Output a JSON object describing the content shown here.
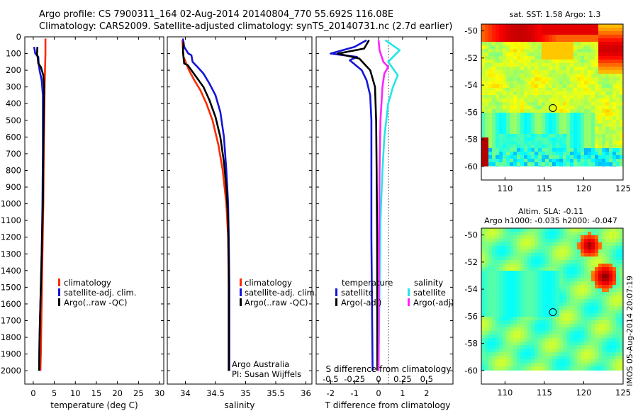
{
  "header": {
    "title1": "Argo profile: CS 7900311_164 02-Aug-2014 20140804_770 55.692S 116.08E",
    "title2": "Climatology: CARS2009. Satellite-adjusted climatology: synTS_20140731.nc (2.7d earlier)"
  },
  "colors": {
    "climatology": "#ff2a00",
    "satellite": "#1515d8",
    "argo": "#000000",
    "sat_salinity": "#22e6e6",
    "argo_salinity_adj": "#ff22ff"
  },
  "chart_data": [
    {
      "type": "line",
      "id": "temperature",
      "xlabel": "temperature (deg C)",
      "ylabel": "",
      "xlim": [
        -2,
        31
      ],
      "ylim": [
        2080,
        0
      ],
      "xticks": [
        0,
        5,
        10,
        15,
        20,
        25,
        30
      ],
      "yticks": [
        0,
        100,
        200,
        300,
        400,
        500,
        600,
        700,
        800,
        900,
        1000,
        1100,
        1200,
        1300,
        1400,
        1500,
        1600,
        1700,
        1800,
        1900,
        2000
      ],
      "legend": [
        "climatology",
        "satellite-adj. clim.",
        "Argo(..raw -QC)"
      ],
      "series": [
        {
          "name": "climatology",
          "color": "#ff2a00",
          "points": [
            [
              2.9,
              10
            ],
            [
              2.9,
              100
            ],
            [
              2.8,
              200
            ],
            [
              2.7,
              300
            ],
            [
              2.6,
              500
            ],
            [
              2.5,
              700
            ],
            [
              2.4,
              1000
            ],
            [
              2.2,
              1300
            ],
            [
              2.0,
              1600
            ],
            [
              1.8,
              1900
            ],
            [
              1.7,
              2000
            ]
          ]
        },
        {
          "name": "satellite-adj. clim.",
          "color": "#1515d8",
          "points": [
            [
              0.2,
              60
            ],
            [
              0.5,
              100
            ],
            [
              1.2,
              120
            ],
            [
              1.3,
              160
            ],
            [
              1.5,
              200
            ],
            [
              2.0,
              260
            ],
            [
              2.3,
              350
            ],
            [
              2.3,
              500
            ],
            [
              2.3,
              700
            ],
            [
              2.2,
              1000
            ],
            [
              2.0,
              1300
            ],
            [
              1.7,
              1600
            ],
            [
              1.5,
              1800
            ],
            [
              1.4,
              2000
            ]
          ]
        },
        {
          "name": "Argo(..raw -QC)",
          "color": "#000000",
          "points": [
            [
              1.0,
              60
            ],
            [
              0.9,
              100
            ],
            [
              1.1,
              130
            ],
            [
              1.2,
              160
            ],
            [
              1.8,
              180
            ],
            [
              2.4,
              230
            ],
            [
              2.6,
              300
            ],
            [
              2.5,
              500
            ],
            [
              2.4,
              700
            ],
            [
              2.3,
              1000
            ],
            [
              2.0,
              1300
            ],
            [
              1.7,
              1600
            ],
            [
              1.5,
              1800
            ],
            [
              1.4,
              2000
            ]
          ]
        }
      ]
    },
    {
      "type": "line",
      "id": "salinity",
      "xlabel": "salinity",
      "ylabel": "",
      "xlim": [
        33.7,
        36.1
      ],
      "ylim": [
        2080,
        0
      ],
      "xticks": [
        34,
        34.5,
        35,
        35.5,
        36
      ],
      "xticklabels": [
        "34",
        "34.5",
        "35",
        "35.5",
        "36"
      ],
      "legend": [
        "climatology",
        "satellite-adj. clim.",
        "Argo(..raw -QC)"
      ],
      "series": [
        {
          "name": "climatology",
          "color": "#ff2a00",
          "points": [
            [
              33.95,
              20
            ],
            [
              33.97,
              120
            ],
            [
              34.06,
              200
            ],
            [
              34.15,
              260
            ],
            [
              34.25,
              320
            ],
            [
              34.35,
              400
            ],
            [
              34.45,
              500
            ],
            [
              34.55,
              650
            ],
            [
              34.62,
              800
            ],
            [
              34.68,
              1000
            ],
            [
              34.71,
              1200
            ],
            [
              34.72,
              1500
            ],
            [
              34.72,
              2000
            ]
          ]
        },
        {
          "name": "satellite-adj. clim.",
          "color": "#1515d8",
          "points": [
            [
              33.96,
              10
            ],
            [
              33.98,
              60
            ],
            [
              34.05,
              100
            ],
            [
              34.1,
              110
            ],
            [
              34.12,
              150
            ],
            [
              34.2,
              180
            ],
            [
              34.3,
              220
            ],
            [
              34.4,
              280
            ],
            [
              34.5,
              350
            ],
            [
              34.58,
              450
            ],
            [
              34.64,
              600
            ],
            [
              34.68,
              800
            ],
            [
              34.71,
              1000
            ],
            [
              34.72,
              1200
            ],
            [
              34.73,
              1500
            ],
            [
              34.73,
              2000
            ]
          ]
        },
        {
          "name": "Argo(..raw -QC)",
          "color": "#000000",
          "points": [
            [
              33.97,
              30
            ],
            [
              33.96,
              90
            ],
            [
              33.98,
              160
            ],
            [
              34.04,
              170
            ],
            [
              34.1,
              200
            ],
            [
              34.2,
              250
            ],
            [
              34.3,
              300
            ],
            [
              34.4,
              380
            ],
            [
              34.5,
              480
            ],
            [
              34.58,
              600
            ],
            [
              34.64,
              750
            ],
            [
              34.68,
              900
            ],
            [
              34.71,
              1100
            ],
            [
              34.72,
              1400
            ],
            [
              34.72,
              2000
            ]
          ]
        }
      ]
    },
    {
      "type": "line",
      "id": "difference",
      "xlabel": "T difference from climatology",
      "xlabel_top": "S difference from climatology",
      "xlim": [
        -2.6,
        3.1
      ],
      "ylim": [
        2080,
        0
      ],
      "xticks": [
        -2,
        -1,
        0,
        1,
        2
      ],
      "sticks": [
        -0.5,
        -0.25,
        0,
        0.25,
        0.5
      ],
      "sticklabels": [
        "-0.5",
        "-0.25",
        "0",
        "0.25",
        "0.5"
      ],
      "legend_headers": [
        "temperature",
        "salinity"
      ],
      "legend_temperature": [
        "satellite",
        "Argo(-adj)"
      ],
      "legend_salinity": [
        "satellite",
        "Argo(-adj)"
      ],
      "series": [
        {
          "name": "temperature satellite",
          "color": "#1515d8",
          "points": [
            [
              -0.5,
              20
            ],
            [
              -1.0,
              60
            ],
            [
              -2.0,
              100
            ],
            [
              -0.9,
              120
            ],
            [
              -1.2,
              140
            ],
            [
              -0.7,
              200
            ],
            [
              -0.5,
              260
            ],
            [
              -0.35,
              350
            ],
            [
              -0.3,
              500
            ],
            [
              -0.3,
              800
            ],
            [
              -0.3,
              1200
            ],
            [
              -0.25,
              2000
            ]
          ]
        },
        {
          "name": "temperature Argo(-adj)",
          "color": "#000000",
          "points": [
            [
              -0.4,
              20
            ],
            [
              -0.6,
              70
            ],
            [
              -1.7,
              100
            ],
            [
              -0.8,
              130
            ],
            [
              -0.35,
              200
            ],
            [
              -0.15,
              300
            ],
            [
              -0.1,
              500
            ],
            [
              -0.08,
              800
            ],
            [
              -0.06,
              1200
            ],
            [
              -0.05,
              2000
            ]
          ]
        },
        {
          "name": "salinity satellite",
          "color": "#22e6e6",
          "points": [
            [
              0.07,
              20
            ],
            [
              0.22,
              80
            ],
            [
              0.1,
              150
            ],
            [
              0.2,
              230
            ],
            [
              0.15,
              300
            ],
            [
              0.1,
              400
            ],
            [
              0.06,
              600
            ],
            [
              0.04,
              800
            ],
            [
              0.02,
              1100
            ],
            [
              0.01,
              1500
            ],
            [
              0.0,
              2000
            ]
          ]
        },
        {
          "name": "salinity Argo(-adj)",
          "color": "#ff22ff",
          "points": [
            [
              0.0,
              20
            ],
            [
              0.01,
              80
            ],
            [
              0.05,
              150
            ],
            [
              0.1,
              180
            ],
            [
              0.06,
              220
            ],
            [
              0.04,
              300
            ],
            [
              0.02,
              500
            ],
            [
              0.01,
              800
            ],
            [
              0.005,
              1200
            ],
            [
              0.0,
              2000
            ]
          ]
        }
      ]
    },
    {
      "type": "heatmap",
      "id": "sst-map",
      "title": "sat. SST: 1.58 Argo: 1.3",
      "xlim": [
        107,
        125
      ],
      "ylim": [
        -61,
        -49.5
      ],
      "xticks": [
        110,
        115,
        120,
        125
      ],
      "yticks": [
        -50,
        -52,
        -54,
        -56,
        -58,
        -60
      ],
      "marker": [
        116.08,
        -55.692
      ]
    },
    {
      "type": "heatmap",
      "id": "sla-map",
      "title1": "Altim. SLA: -0.11",
      "title2": "Argo h1000: -0.035 h2000: -0.047",
      "xlim": [
        107,
        125
      ],
      "ylim": [
        -61,
        -49.5
      ],
      "xticks": [
        110,
        115,
        120,
        125
      ],
      "yticks": [
        -50,
        -52,
        -54,
        -56,
        -58,
        -60
      ],
      "marker": [
        116.08,
        -55.692
      ]
    }
  ],
  "annotations": {
    "float_owner": "Argo Australia",
    "pi": "PI: Susan Wijffels",
    "stamp": "IMOS 05-Aug-2014 20:07:19"
  }
}
